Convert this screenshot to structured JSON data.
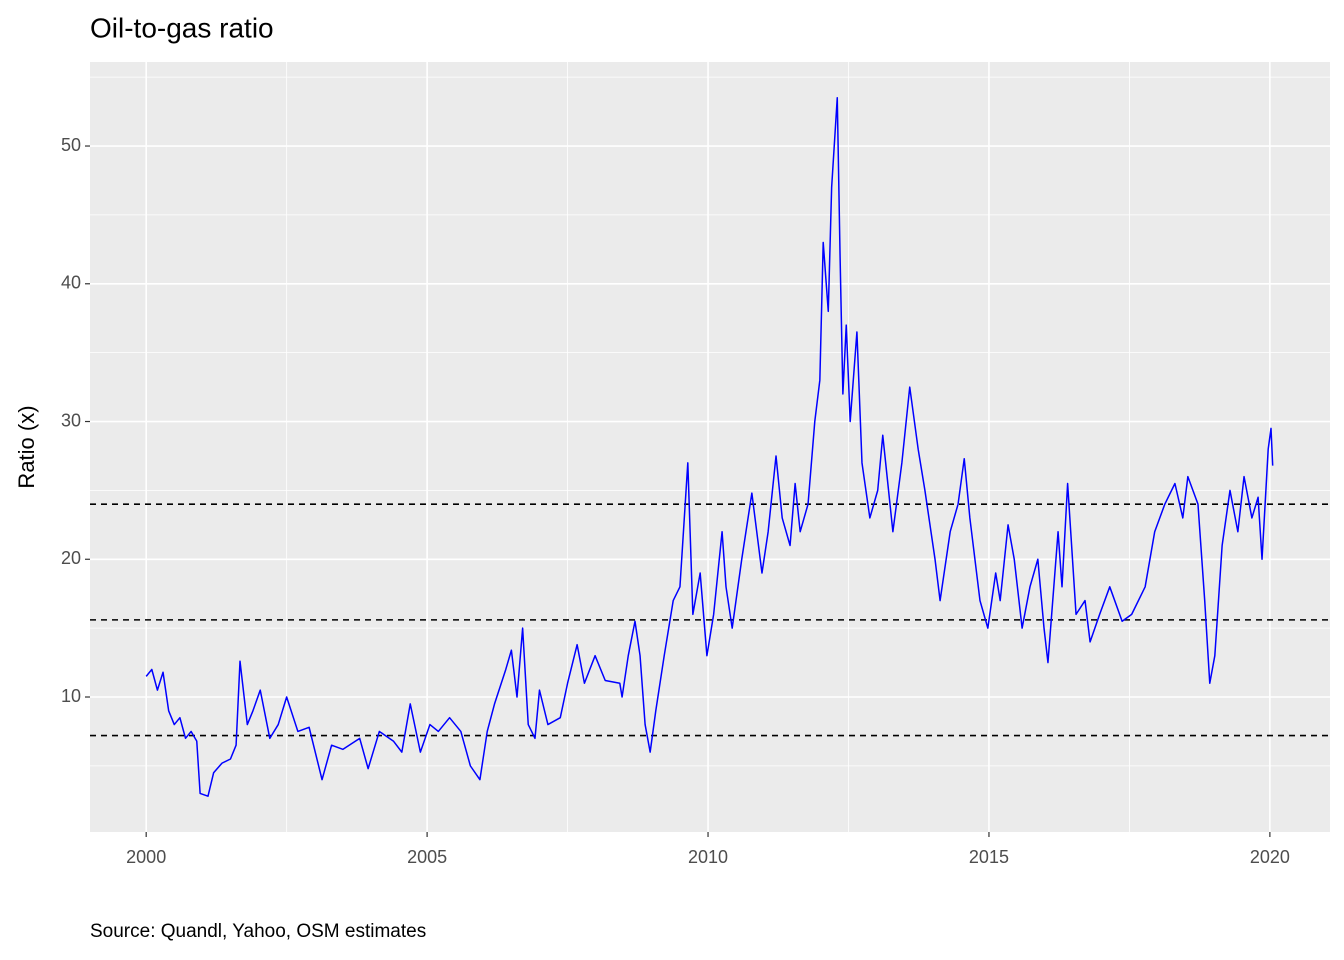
{
  "chart_data": {
    "type": "line",
    "title": "Oil-to-gas ratio",
    "ylabel": "Ratio (x)",
    "caption": "Source: Quandl, Yahoo, OSM estimates",
    "xlim": [
      1999.0,
      2021.07
    ],
    "xticks": [
      2000,
      2005,
      2010,
      2015,
      2020
    ],
    "xminor": [
      2002.5,
      2007.5,
      2012.5,
      2017.5
    ],
    "ylim": [
      0.2,
      56.1
    ],
    "yticks": [
      10,
      20,
      30,
      40,
      50
    ],
    "yminor": [
      5,
      15,
      25,
      35,
      45,
      55
    ],
    "grid": true,
    "hlines": [
      24.0,
      15.6,
      7.2
    ],
    "series": [
      {
        "name": "Oil-to-gas ratio",
        "color": "#0000ff",
        "x": [
          2000.0,
          2000.1,
          2000.2,
          2000.3,
          2000.4,
          2000.5,
          2000.6,
          2000.7,
          2000.8,
          2000.9,
          2000.96,
          2001.1,
          2001.2,
          2001.35,
          2001.5,
          2001.6,
          2001.67,
          2001.8,
          2001.9,
          2002.03,
          2002.2,
          2002.35,
          2002.5,
          2002.7,
          2002.9,
          2003.13,
          2003.3,
          2003.5,
          2003.8,
          2003.95,
          2004.15,
          2004.4,
          2004.55,
          2004.7,
          2004.88,
          2005.05,
          2005.2,
          2005.4,
          2005.6,
          2005.77,
          2005.94,
          2006.07,
          2006.2,
          2006.4,
          2006.5,
          2006.6,
          2006.7,
          2006.8,
          2006.92,
          2007.0,
          2007.15,
          2007.37,
          2007.5,
          2007.67,
          2007.8,
          2007.99,
          2008.17,
          2008.43,
          2008.47,
          2008.58,
          2008.7,
          2008.79,
          2008.88,
          2008.97,
          2009.07,
          2009.22,
          2009.38,
          2009.5,
          2009.64,
          2009.73,
          2009.86,
          2009.98,
          2010.1,
          2010.25,
          2010.32,
          2010.43,
          2010.6,
          2010.78,
          2010.96,
          2011.07,
          2011.21,
          2011.32,
          2011.46,
          2011.55,
          2011.64,
          2011.78,
          2011.9,
          2011.99,
          2012.05,
          2012.14,
          2012.2,
          2012.3,
          2012.35,
          2012.4,
          2012.46,
          2012.53,
          2012.65,
          2012.74,
          2012.88,
          2013.02,
          2013.11,
          2013.29,
          2013.45,
          2013.59,
          2013.74,
          2013.86,
          2014.04,
          2014.13,
          2014.31,
          2014.45,
          2014.56,
          2014.66,
          2014.84,
          2014.98,
          2015.12,
          2015.2,
          2015.34,
          2015.45,
          2015.59,
          2015.73,
          2015.87,
          2015.98,
          2016.05,
          2016.23,
          2016.3,
          2016.4,
          2016.55,
          2016.71,
          2016.8,
          2016.97,
          2017.15,
          2017.37,
          2017.54,
          2017.78,
          2017.95,
          2018.13,
          2018.31,
          2018.45,
          2018.54,
          2018.72,
          2018.84,
          2018.93,
          2019.02,
          2019.15,
          2019.29,
          2019.43,
          2019.54,
          2019.68,
          2019.79,
          2019.86,
          2019.97,
          2020.02,
          2020.05
        ],
        "values": [
          11.5,
          12,
          10.5,
          11.8,
          9,
          8,
          8.5,
          7,
          7.5,
          6.8,
          3,
          2.8,
          4.5,
          5.2,
          5.5,
          6.5,
          12.6,
          8,
          9,
          10.5,
          7,
          8,
          10,
          7.5,
          7.8,
          4,
          6.5,
          6.2,
          7,
          4.8,
          7.5,
          6.8,
          6,
          9.5,
          6,
          8,
          7.5,
          8.5,
          7.5,
          5,
          4,
          7.5,
          9.5,
          12,
          13.4,
          10,
          15,
          8,
          7,
          10.5,
          8,
          8.5,
          11,
          13.8,
          11,
          13,
          11.2,
          11,
          10,
          13,
          15.5,
          13,
          8,
          6,
          9,
          13,
          17,
          18,
          27,
          16,
          19,
          13,
          16,
          22,
          18,
          15,
          20,
          24.8,
          19,
          22,
          27.5,
          23,
          21,
          25.5,
          22,
          24,
          30,
          33,
          43,
          38,
          47,
          53.5,
          42,
          32,
          37,
          30,
          36.5,
          27,
          23,
          25,
          29,
          22,
          27,
          32.5,
          28,
          25,
          20,
          17,
          22,
          24,
          27.3,
          23,
          17,
          15,
          19,
          17,
          22.5,
          20,
          15,
          18,
          20,
          15,
          12.5,
          22,
          18,
          25.5,
          16,
          17,
          14,
          16,
          18,
          15.5,
          16,
          18,
          22,
          24,
          25.5,
          23,
          26,
          24,
          17,
          11,
          13,
          21,
          25,
          22,
          26,
          23,
          24.5,
          20,
          28,
          29.5,
          26.8
        ]
      }
    ]
  }
}
